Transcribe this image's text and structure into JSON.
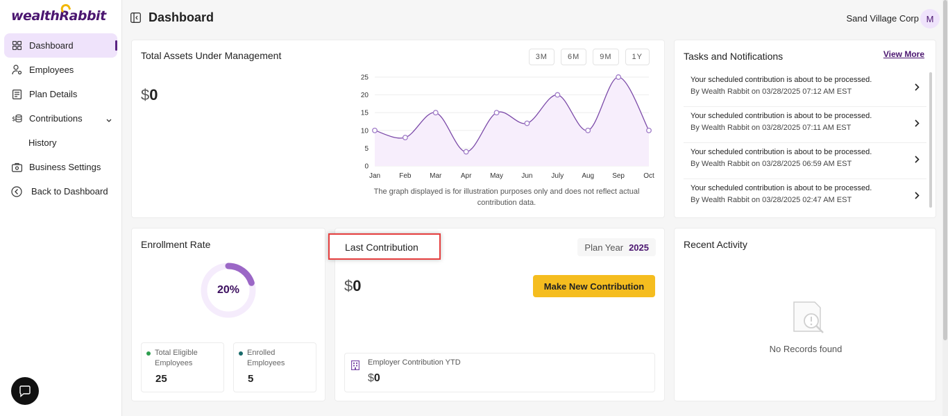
{
  "brand": {
    "logo_text_pre": "wealth",
    "logo_r": "R",
    "logo_text_post": "abbit"
  },
  "sidebar": {
    "items": [
      {
        "label": "Dashboard",
        "icon": "grid-icon"
      },
      {
        "label": "Employees",
        "icon": "user-gear-icon"
      },
      {
        "label": "Plan Details",
        "icon": "document-icon"
      },
      {
        "label": "Contributions",
        "icon": "coins-icon"
      },
      {
        "label": "History",
        "icon": ""
      },
      {
        "label": "Business Settings",
        "icon": "briefcase-gear-icon"
      },
      {
        "label": "Back to Dashboard",
        "icon": "back-circle-icon"
      }
    ]
  },
  "header": {
    "title": "Dashboard",
    "company": "Sand Village Corp",
    "avatar_initial": "M"
  },
  "aum": {
    "title": "Total Assets Under Management",
    "currency": "$",
    "amount": "0",
    "ranges": [
      "3M",
      "6M",
      "9M",
      "1Y"
    ],
    "note": "The graph displayed is for illustration purposes only and does not reflect actual contribution data."
  },
  "chart_data": {
    "type": "area",
    "categories": [
      "Jan",
      "Feb",
      "Mar",
      "Apr",
      "May",
      "Jun",
      "July",
      "Aug",
      "Sep",
      "Oct"
    ],
    "values": [
      10,
      8,
      15,
      4,
      15,
      12,
      20,
      10,
      25,
      10
    ],
    "yticks": [
      0,
      5,
      10,
      15,
      20,
      25
    ],
    "ylim": [
      0,
      25
    ],
    "grid": true,
    "line_color": "#7b4aa8",
    "fill_color": "#f7eefc"
  },
  "tasks": {
    "title": "Tasks and Notifications",
    "view_more": "View More",
    "items": [
      {
        "message": "Your scheduled contribution is about to be processed.",
        "meta": "By Wealth Rabbit on 03/28/2025 07:12 AM EST"
      },
      {
        "message": "Your scheduled contribution is about to be processed.",
        "meta": "By Wealth Rabbit on 03/28/2025 07:11 AM EST"
      },
      {
        "message": "Your scheduled contribution is about to be processed.",
        "meta": "By Wealth Rabbit on 03/28/2025 06:59 AM EST"
      },
      {
        "message": "Your scheduled contribution is about to be processed.",
        "meta": "By Wealth Rabbit on 03/28/2025 02:47 AM EST"
      }
    ]
  },
  "enrollment": {
    "title": "Enrollment Rate",
    "rate_label": "20%",
    "rate_fraction": 0.2,
    "eligible_label": "Total Eligible Employees",
    "eligible_value": "25",
    "enrolled_label": "Enrolled Employees",
    "enrolled_value": "5",
    "eligible_dot_color": "#2e9e4f",
    "enrolled_dot_color": "#1a6b6b"
  },
  "last_contribution": {
    "title": "Last Contribution",
    "plan_year_label": "Plan Year",
    "plan_year": "2025",
    "currency": "$",
    "amount": "0",
    "button": "Make New Contribution",
    "ytd_label": "Employer Contribution YTD",
    "ytd_currency": "$",
    "ytd_amount": "0"
  },
  "recent": {
    "title": "Recent Activity",
    "empty": "No Records found"
  },
  "colors": {
    "accent": "#4b1670",
    "highlight": "#e53e3e",
    "button": "#f5bd1f"
  }
}
